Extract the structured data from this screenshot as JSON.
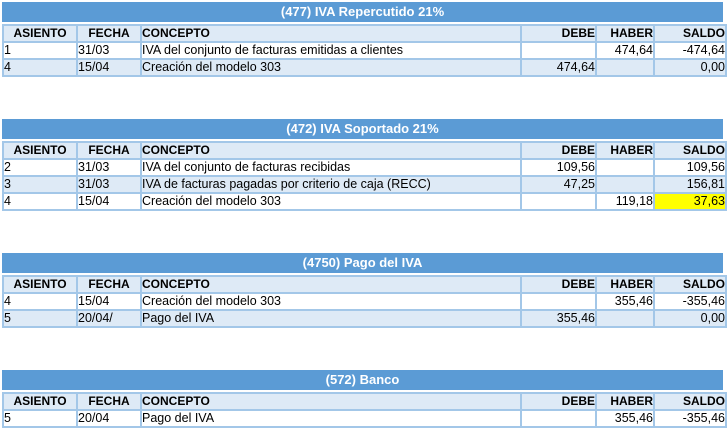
{
  "colors": {
    "title_bg": "#5B9BD5",
    "title_text": "#FFFFFF",
    "band_bg": "#DEEAF6",
    "border": "#A3C7E8",
    "highlight": "#FFFF00",
    "text": "#000000"
  },
  "columns": [
    "ASIENTO",
    "FECHA",
    "CONCEPTO",
    "DEBE",
    "HABER",
    "SALDO"
  ],
  "tables": [
    {
      "title": "(477) IVA Repercutido 21%",
      "rows": [
        {
          "asiento": "1",
          "fecha": "31/03",
          "concepto": "IVA del conjunto de facturas emitidas a clientes",
          "debe": "",
          "haber": "474,64",
          "saldo": "-474,64"
        },
        {
          "asiento": "4",
          "fecha": "15/04",
          "concepto": "Creación del modelo 303",
          "debe": "474,64",
          "haber": "",
          "saldo": "0,00"
        }
      ]
    },
    {
      "title": "(472) IVA Soportado 21%",
      "rows": [
        {
          "asiento": "2",
          "fecha": "31/03",
          "concepto": "IVA del conjunto de facturas recibidas",
          "debe": "109,56",
          "haber": "",
          "saldo": "109,56"
        },
        {
          "asiento": "3",
          "fecha": "31/03",
          "concepto": "IVA de facturas pagadas por criterio de caja (RECC)",
          "debe": "47,25",
          "haber": "",
          "saldo": "156,81"
        },
        {
          "asiento": "4",
          "fecha": "15/04",
          "concepto": "Creación del modelo 303",
          "debe": "",
          "haber": "119,18",
          "saldo": "37,63",
          "highlight": "saldo"
        }
      ]
    },
    {
      "title": "(4750) Pago del IVA",
      "rows": [
        {
          "asiento": "4",
          "fecha": "15/04",
          "concepto": "Creación del modelo 303",
          "debe": "",
          "haber": "355,46",
          "saldo": "-355,46"
        },
        {
          "asiento": "5",
          "fecha": "20/04/",
          "concepto": "Pago del IVA",
          "debe": "355,46",
          "haber": "",
          "saldo": "0,00"
        }
      ]
    },
    {
      "title": "(572) Banco",
      "rows": [
        {
          "asiento": "5",
          "fecha": "20/04",
          "concepto": "Pago del IVA",
          "debe": "",
          "haber": "355,46",
          "saldo": "-355,46"
        }
      ]
    }
  ]
}
